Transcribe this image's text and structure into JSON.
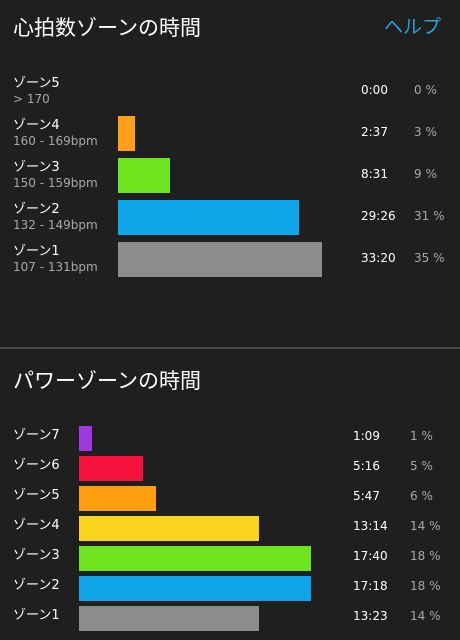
{
  "heart_rate": {
    "title": "心拍数ゾーンの時間",
    "help_label": "ヘルプ",
    "zones": [
      {
        "name": "ゾーン5",
        "range": "> 170",
        "time": "0:00",
        "percent": "0 %",
        "value": 0,
        "color": "#ff9800"
      },
      {
        "name": "ゾーン4",
        "range": "160 - 169bpm",
        "time": "2:37",
        "percent": "3 %",
        "value": 3,
        "color": "#ff9f1a"
      },
      {
        "name": "ゾーン3",
        "range": "150 - 159bpm",
        "time": "8:31",
        "percent": "9 %",
        "value": 9,
        "color": "#6ee51f"
      },
      {
        "name": "ゾーン2",
        "range": "132 - 149bpm",
        "time": "29:26",
        "percent": "31 %",
        "value": 31,
        "color": "#0ea6e8"
      },
      {
        "name": "ゾーン1",
        "range": "107 - 131bpm",
        "time": "33:20",
        "percent": "35 %",
        "value": 35,
        "color": "#8c8c8c"
      }
    ]
  },
  "power": {
    "title": "パワーゾーンの時間",
    "zones": [
      {
        "name": "ゾーン7",
        "time": "1:09",
        "percent": "1 %",
        "value": 1,
        "color": "#9c3ae0"
      },
      {
        "name": "ゾーン6",
        "time": "5:16",
        "percent": "5 %",
        "value": 5,
        "color": "#f4123d"
      },
      {
        "name": "ゾーン5",
        "time": "5:47",
        "percent": "6 %",
        "value": 6,
        "color": "#ff9f10"
      },
      {
        "name": "ゾーン4",
        "time": "13:14",
        "percent": "14 %",
        "value": 14,
        "color": "#f8d41c"
      },
      {
        "name": "ゾーン3",
        "time": "17:40",
        "percent": "18 %",
        "value": 18,
        "color": "#6ee51f"
      },
      {
        "name": "ゾーン2",
        "time": "17:18",
        "percent": "18 %",
        "value": 18,
        "color": "#0ea6e8"
      },
      {
        "name": "ゾーン1",
        "time": "13:23",
        "percent": "14 %",
        "value": 14,
        "color": "#8c8c8c"
      }
    ]
  }
}
